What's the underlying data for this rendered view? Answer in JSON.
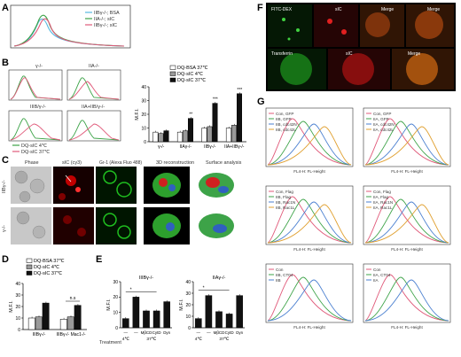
{
  "panels": {
    "A": {
      "label": "A",
      "legend": [
        "IIBγ-/-; BSA",
        "IIA-/-; sIC",
        "IIBγ-/-; sIC"
      ],
      "colors": {
        "bsa": "#55b8e0",
        "iia": "#3da348",
        "iib": "#e05a7a"
      }
    },
    "B": {
      "label": "B",
      "hist_titles": [
        "γ-/-",
        "IIA-/-",
        "IIIB/γ-/-",
        "IIA+IIB/γ-/-"
      ],
      "hist_legend": [
        "DQ-sIC 4℃",
        "DQ-sIC 37℃"
      ],
      "bar_legend": [
        "DQ-BSA 37℃",
        "DQ-sIC 4℃",
        "DQ-sIC 37℃"
      ],
      "ylabel": "M.F.I.",
      "categories": [
        "γ-/-",
        "IIAγ-/-",
        "IIBγ-/-",
        "IIA+IIBγ-/-"
      ],
      "sig": [
        "**",
        "***",
        "***"
      ]
    },
    "C": {
      "label": "C",
      "col_titles": [
        "Phase",
        "sIC (cy3)",
        "Gr-1 (Alexa Fluo 488)",
        "3D reconstruction",
        "Surface analysis"
      ],
      "row_labels": [
        "IIBγ-/-",
        "γ-/-"
      ]
    },
    "D": {
      "label": "D",
      "legend": [
        "DQ-BSA 37℃",
        "DQ-sIC 4℃",
        "DQ-sIC 37℃"
      ],
      "ylabel": "M.F.I.",
      "categories": [
        "IIIBγ-/-",
        "IIIBγ-/- Mac1-/-"
      ],
      "sig": "n.s"
    },
    "E": {
      "label": "E",
      "titles": [
        "IIIBγ-/-",
        "IIAγ-/-"
      ],
      "ylabel": "M.F.I.",
      "treatment_label": "Treatment",
      "treatments": [
        "—",
        "—",
        "MβCD",
        "CytD",
        "Dyn"
      ],
      "temps": [
        "4℃",
        "37℃"
      ],
      "sig": "*"
    },
    "F": {
      "label": "F",
      "top": [
        "FITC-DEX",
        "sIC",
        "Merge",
        "sIC",
        "Merge"
      ],
      "bottom": [
        "Transferrin",
        "sIC",
        "Merge"
      ]
    },
    "G": {
      "label": "G",
      "xlabel": "FL4-H: FL-Height",
      "legends": [
        [
          "Con, GFP",
          "IIB, GFP",
          "IIB, cdc42N",
          "IIB, cdc42L"
        ],
        [
          "Con, GFP",
          "IIA, GFP",
          "IIA, cdc42N",
          "IIA, cdc42L"
        ],
        [
          "Con, Flag",
          "IIB, Flag",
          "IIB, Rac1N",
          "IIB, Rac1L"
        ],
        [
          "Con, Flag",
          "IIA, Flag",
          "IIA, Rac1N",
          "IIA, Rac1L"
        ],
        [
          "Con",
          "IIB, CT04",
          "IIB"
        ],
        [
          "Con",
          "IIA, CT04",
          "IIA"
        ]
      ]
    }
  },
  "chart_data": [
    {
      "type": "bar",
      "panel": "B",
      "categories": [
        "γ-/-",
        "IIAγ-/-",
        "IIBγ-/-",
        "IIA+IIBγ-/-"
      ],
      "series": [
        {
          "name": "DQ-BSA 37℃",
          "values": [
            7,
            7,
            10,
            10
          ]
        },
        {
          "name": "DQ-sIC 4℃",
          "values": [
            6,
            8,
            11,
            12
          ]
        },
        {
          "name": "DQ-sIC 37℃",
          "values": [
            8,
            17,
            28,
            35
          ]
        }
      ],
      "ylabel": "M.F.I.",
      "ylim": [
        0,
        40
      ],
      "yticks": [
        0,
        10,
        20,
        30,
        40
      ]
    },
    {
      "type": "bar",
      "panel": "D",
      "categories": [
        "IIIBγ-/-",
        "IIIBγ-/- Mac1-/-"
      ],
      "series": [
        {
          "name": "DQ-BSA 37℃",
          "values": [
            10,
            9
          ]
        },
        {
          "name": "DQ-sIC 4℃",
          "values": [
            11,
            11
          ]
        },
        {
          "name": "DQ-sIC 37℃",
          "values": [
            23,
            21
          ]
        }
      ],
      "ylabel": "M.F.I.",
      "ylim": [
        0,
        40
      ],
      "yticks": [
        0,
        10,
        20,
        30,
        40
      ]
    },
    {
      "type": "bar",
      "panel": "E-left",
      "title": "IIIBγ-/-",
      "categories": [
        "4℃",
        "37℃",
        "MβCD",
        "CytD",
        "Dyn"
      ],
      "values": [
        6,
        20,
        11,
        11,
        17
      ],
      "ylabel": "M.F.I.",
      "ylim": [
        0,
        30
      ],
      "yticks": [
        0,
        10,
        20,
        30
      ]
    },
    {
      "type": "bar",
      "panel": "E-right",
      "title": "IIAγ-/-",
      "categories": [
        "4℃",
        "37℃",
        "MβCD",
        "CytD",
        "Dyn"
      ],
      "values": [
        8,
        28,
        14,
        12,
        28
      ],
      "ylabel": "M.F.I.",
      "ylim": [
        0,
        40
      ],
      "yticks": [
        0,
        10,
        20,
        30,
        40
      ]
    }
  ]
}
